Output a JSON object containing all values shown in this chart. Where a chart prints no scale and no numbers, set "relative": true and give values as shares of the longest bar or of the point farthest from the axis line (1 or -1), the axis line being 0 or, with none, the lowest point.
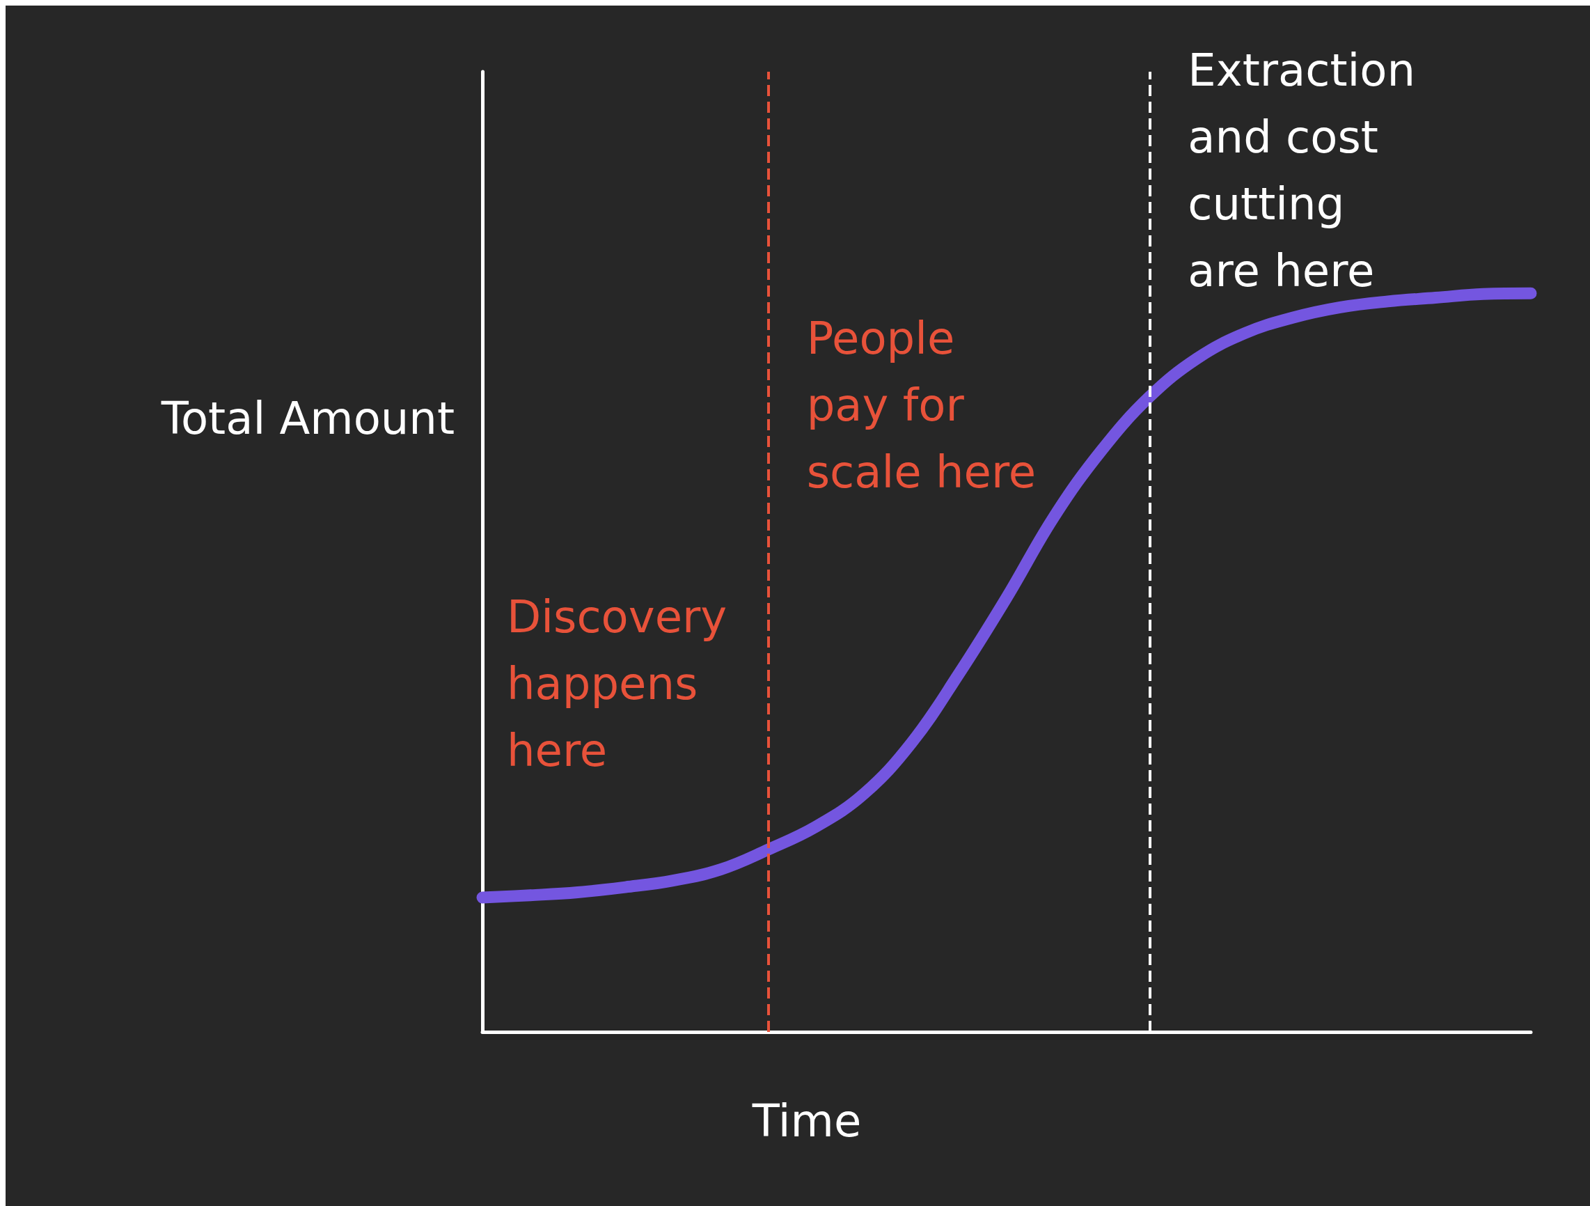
{
  "chart_data": {
    "type": "line",
    "relative": true,
    "xlabel": "Time",
    "ylabel": "Total Amount",
    "grid": false,
    "line_style": "solid",
    "categories": [
      null,
      null,
      null,
      null,
      null,
      null,
      null,
      null,
      null,
      null,
      null,
      null,
      null,
      null,
      null,
      null,
      null,
      null,
      null,
      null,
      null,
      null,
      null
    ],
    "series": [
      {
        "color": "#7456e0",
        "values": [
          0.182,
          0.185,
          0.189,
          0.196,
          0.205,
          0.22,
          0.247,
          0.278,
          0.322,
          0.391,
          0.485,
          0.588,
          0.698,
          0.788,
          0.86,
          0.912,
          0.946,
          0.967,
          0.981,
          0.989,
          0.994,
          0.999,
          1
        ]
      }
    ],
    "annotations": [
      "Discovery happens here",
      "People pay for scale here",
      "Extraction and cost cutting are here"
    ]
  }
}
